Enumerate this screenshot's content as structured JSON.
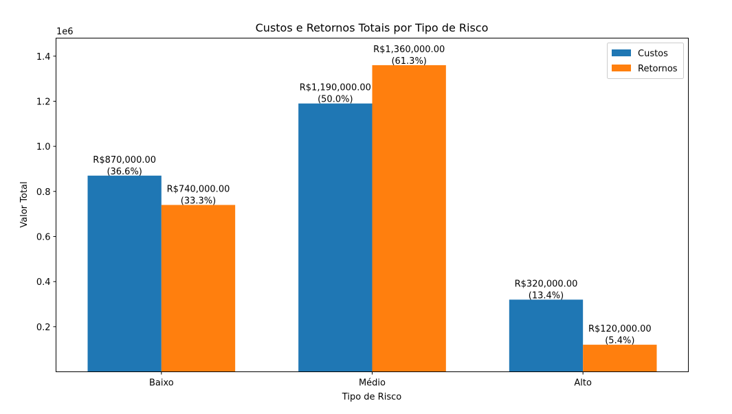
{
  "chart_data": {
    "type": "bar",
    "title": "Custos e Retornos Totais por Tipo de Risco",
    "xlabel": "Tipo de Risco",
    "ylabel": "Valor Total",
    "y_offset_label": "1e6",
    "categories": [
      "Baixo",
      "Médio",
      "Alto"
    ],
    "ylim": [
      0,
      1480000
    ],
    "y_ticks": [
      200000,
      400000,
      600000,
      800000,
      1000000,
      1200000,
      1400000
    ],
    "y_tick_labels": [
      "0.2",
      "0.4",
      "0.6",
      "0.8",
      "1.0",
      "1.2",
      "1.4"
    ],
    "legend_position": "top-right",
    "grid": false,
    "series": [
      {
        "name": "Custos",
        "color": "#1f77b4",
        "values": [
          870000,
          1190000,
          320000
        ],
        "value_labels": [
          "R$870,000.00",
          "R$1,190,000.00",
          "R$320,000.00"
        ],
        "pct_labels": [
          "(36.6%)",
          "(50.0%)",
          "(13.4%)"
        ]
      },
      {
        "name": "Retornos",
        "color": "#ff7f0e",
        "values": [
          740000,
          1360000,
          120000
        ],
        "value_labels": [
          "R$740,000.00",
          "R$1,360,000.00",
          "R$120,000.00"
        ],
        "pct_labels": [
          "(33.3%)",
          "(61.3%)",
          "(5.4%)"
        ]
      }
    ]
  }
}
